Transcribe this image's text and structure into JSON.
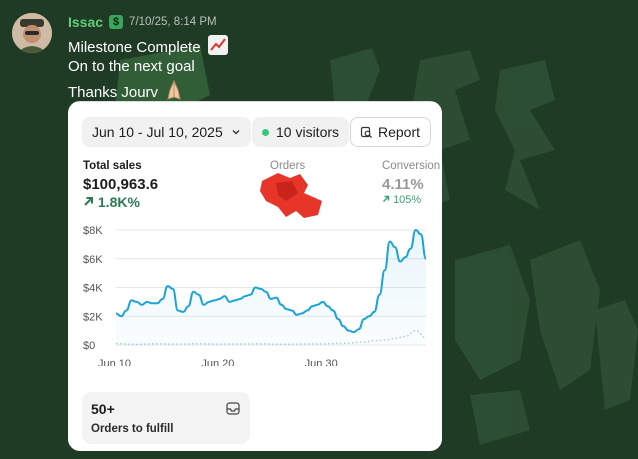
{
  "message": {
    "author": "Issac",
    "timestamp": "7/10/25, 8:14 PM",
    "lines": [
      "Milestone Complete",
      "On to the next goal",
      "Thanks Jourv"
    ]
  },
  "card": {
    "date_range": "Jun 10 - Jul 10, 2025",
    "visitors": "10 visitors",
    "report": "Report",
    "total_sales": {
      "label": "Total sales",
      "value": "$100,963.6",
      "change": "1.8K%"
    },
    "orders": {
      "label": "Orders"
    },
    "conversion": {
      "label": "Conversion",
      "value": "4.11%",
      "change": "105%"
    },
    "fulfill": {
      "count": "50+",
      "label": "Orders to fulfill"
    }
  },
  "colors": {
    "accent_green": "#5fcf7a",
    "line_blue": "#1aa3d9",
    "bg": "#1f3a25"
  },
  "chart_data": {
    "type": "line",
    "y_tick_labels": [
      "$8K",
      "$6K",
      "$4K",
      "$2K",
      "$0"
    ],
    "y_ticks": [
      8000,
      6000,
      4000,
      2000,
      0
    ],
    "x_tick_labels": [
      "Jun 10",
      "Jun 20",
      "Jun 30"
    ],
    "x_ticks": [
      0,
      10,
      20
    ],
    "ylim": [
      0,
      8000
    ],
    "xlim": [
      0,
      30
    ],
    "grid": true,
    "series": [
      {
        "style": "solid",
        "x": [
          0,
          0.5,
          1,
          1.5,
          2,
          2.5,
          3,
          3.5,
          4,
          4.5,
          5,
          5.5,
          6,
          6.5,
          7,
          7.5,
          8,
          8.5,
          9,
          9.5,
          10,
          10.5,
          11,
          11.5,
          12,
          12.5,
          13,
          13.5,
          14,
          14.5,
          15,
          15.5,
          16,
          16.5,
          17,
          17.5,
          18,
          18.5,
          19,
          19.5,
          20,
          20.5,
          21,
          21.5,
          22,
          22.5,
          23,
          23.5,
          24,
          24.5,
          25,
          25.5,
          26,
          26.5,
          27,
          27.5,
          28,
          28.5,
          29,
          29.5,
          30
        ],
        "values": [
          2200,
          2000,
          2400,
          3100,
          3000,
          2800,
          3000,
          2900,
          2900,
          3200,
          4100,
          3900,
          2400,
          2300,
          2700,
          3700,
          3500,
          2800,
          3000,
          3100,
          3200,
          3400,
          3000,
          3100,
          3200,
          3400,
          3500,
          4000,
          3900,
          3700,
          3200,
          3300,
          2800,
          2500,
          2400,
          2100,
          2200,
          2400,
          2700,
          2800,
          3000,
          2700,
          2400,
          1800,
          1300,
          1000,
          900,
          1100,
          1800,
          2000,
          2300,
          3500,
          5200,
          7200,
          6800,
          5800,
          6100,
          6700,
          8000,
          7700,
          6000
        ]
      },
      {
        "style": "dotted",
        "x": [
          0,
          2,
          4,
          6,
          8,
          10,
          12,
          14,
          16,
          18,
          20,
          22,
          24,
          25,
          26,
          27,
          28,
          29,
          30
        ],
        "values": [
          100,
          50,
          80,
          60,
          90,
          60,
          70,
          80,
          50,
          70,
          80,
          120,
          200,
          300,
          350,
          450,
          600,
          1000,
          500
        ]
      }
    ]
  }
}
